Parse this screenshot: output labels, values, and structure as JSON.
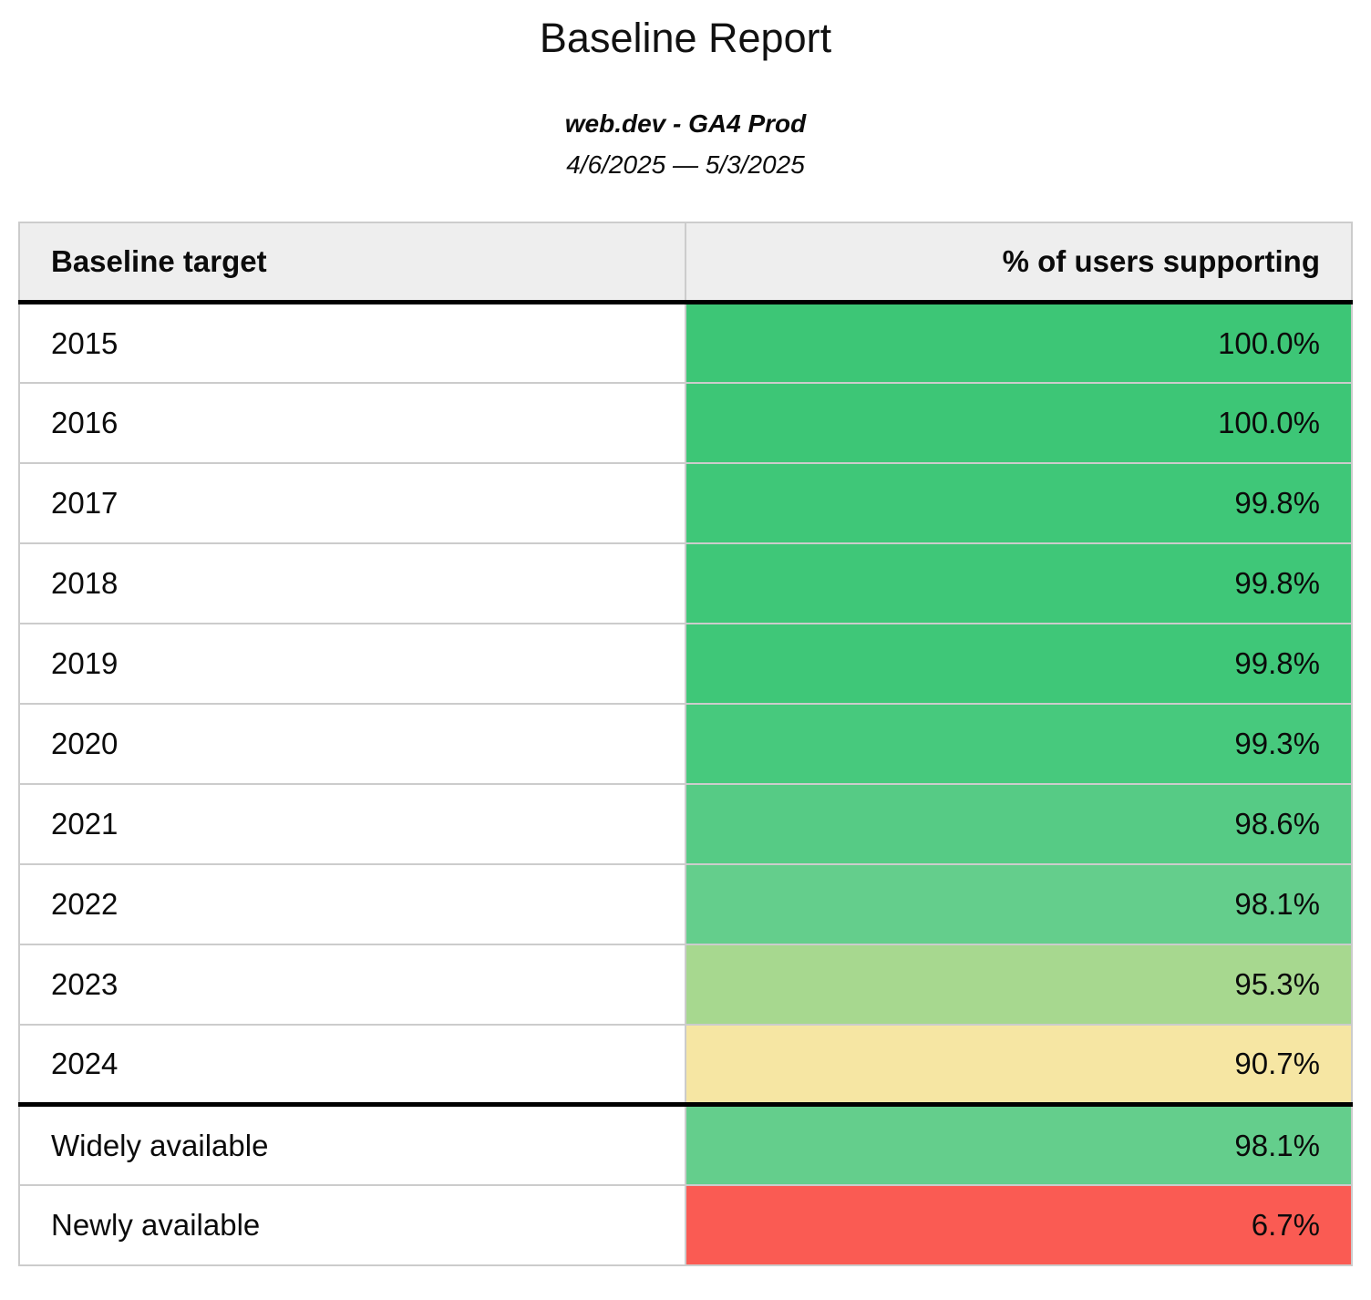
{
  "page": {
    "title": "Baseline Report",
    "subtitle": "web.dev - GA4 Prod",
    "date_range": "4/6/2025 — 5/3/2025"
  },
  "colors": {
    "header_background": "#eeeeee",
    "cell_border": "#cccccc",
    "section_rule": "#000000",
    "scale_green_strong": "#3dc777",
    "scale_green_pale": "#a8d88f",
    "scale_yellow": "#f6e6a3",
    "scale_red": "#fa5b53"
  },
  "table": {
    "columns": [
      {
        "label": "Baseline target",
        "align": "left"
      },
      {
        "label": "% of users supporting",
        "align": "right"
      }
    ],
    "rows": [
      {
        "target": "2015",
        "value": "100.0%",
        "color": "#3dc676",
        "thick_top_border": false
      },
      {
        "target": "2016",
        "value": "100.0%",
        "color": "#3dc676",
        "thick_top_border": false
      },
      {
        "target": "2017",
        "value": "99.8%",
        "color": "#3fc778",
        "thick_top_border": false
      },
      {
        "target": "2018",
        "value": "99.8%",
        "color": "#3fc778",
        "thick_top_border": false
      },
      {
        "target": "2019",
        "value": "99.8%",
        "color": "#3fc778",
        "thick_top_border": false
      },
      {
        "target": "2020",
        "value": "99.3%",
        "color": "#47c97d",
        "thick_top_border": false
      },
      {
        "target": "2021",
        "value": "98.6%",
        "color": "#56cb85",
        "thick_top_border": false
      },
      {
        "target": "2022",
        "value": "98.1%",
        "color": "#64ce8c",
        "thick_top_border": false
      },
      {
        "target": "2023",
        "value": "95.3%",
        "color": "#a7d88f",
        "thick_top_border": false
      },
      {
        "target": "2024",
        "value": "90.7%",
        "color": "#f6e6a3",
        "thick_top_border": false
      },
      {
        "target": "Widely available",
        "value": "98.1%",
        "color": "#64ce8c",
        "thick_top_border": true
      },
      {
        "target": "Newly available",
        "value": "6.7%",
        "color": "#fa5b53",
        "thick_top_border": false
      }
    ]
  },
  "chart_data": {
    "type": "table",
    "title": "Baseline Report",
    "categories": [
      "2015",
      "2016",
      "2017",
      "2018",
      "2019",
      "2020",
      "2021",
      "2022",
      "2023",
      "2024",
      "Widely available",
      "Newly available"
    ],
    "values": [
      100.0,
      100.0,
      99.8,
      99.8,
      99.8,
      99.3,
      98.6,
      98.1,
      95.3,
      90.7,
      98.1,
      6.7
    ],
    "value_label": "% of users supporting"
  }
}
